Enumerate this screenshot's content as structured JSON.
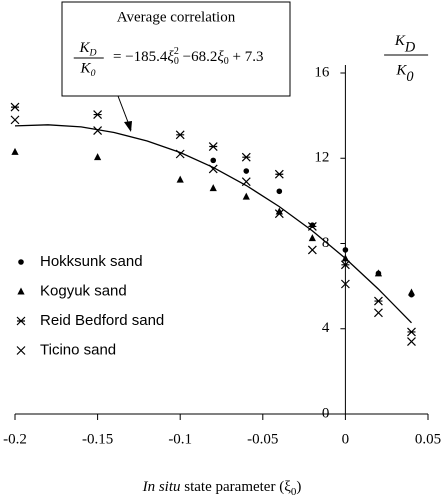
{
  "chart_data": {
    "type": "scatter",
    "xlim": [
      -0.2,
      0.05
    ],
    "ylim": [
      0,
      16
    ],
    "xticks": [
      -0.2,
      -0.15,
      -0.1,
      -0.05,
      0,
      0.05
    ],
    "yticks": [
      0,
      4,
      8,
      12,
      16
    ],
    "x_label": [
      "In situ",
      " state parameter (ξ",
      "0",
      ")"
    ],
    "y_label": {
      "numerator": "K",
      "numerator_sub": "D",
      "denominator": "K",
      "denominator_sub": "0"
    },
    "annotation": {
      "title": "Average correlation",
      "lhs": {
        "numerator": "K",
        "numerator_sub": "D",
        "denominator": "K",
        "denominator_sub": "0"
      },
      "rhs": [
        "= −185.4",
        "ξ",
        "0",
        "2",
        " −68.2",
        "ξ",
        "0",
        " + 7.3"
      ]
    },
    "series": [
      {
        "name": "Hokksunk sand",
        "marker": "dot",
        "color": "#000000",
        "x": [
          -0.08,
          -0.06,
          -0.04,
          -0.02,
          0,
          0.02,
          0.04
        ],
        "values": [
          11.9,
          11.4,
          10.45,
          8.86,
          7.7,
          6.6,
          5.6
        ]
      },
      {
        "name": "Kogyuk sand",
        "marker": "triangle",
        "color": "#000000",
        "x": [
          -0.2,
          -0.15,
          -0.1,
          -0.08,
          -0.06,
          -0.04,
          -0.02,
          0,
          0.02,
          0.04
        ],
        "values": [
          12.3,
          12.05,
          11.0,
          10.6,
          10.2,
          9.5,
          8.25,
          7.3,
          6.6,
          5.7
        ]
      },
      {
        "name": "Reid Bedford sand",
        "marker": "asterisk",
        "color": "#000000",
        "x": [
          -0.2,
          -0.15,
          -0.1,
          -0.08,
          -0.06,
          -0.04,
          -0.02,
          0,
          0.02,
          0.04
        ],
        "values": [
          14.4,
          14.05,
          13.1,
          12.55,
          12.05,
          11.25,
          8.8,
          7.0,
          5.3,
          3.85
        ]
      },
      {
        "name": "Ticino sand",
        "marker": "x",
        "color": "#000000",
        "x": [
          -0.2,
          -0.15,
          -0.1,
          -0.08,
          -0.06,
          -0.04,
          -0.02,
          0,
          0.02,
          0.04
        ],
        "values": [
          13.8,
          13.3,
          12.2,
          11.5,
          10.9,
          9.4,
          7.7,
          6.1,
          4.75,
          3.4
        ]
      }
    ],
    "fit": {
      "color": "#000000",
      "x": [
        -0.2,
        -0.18,
        -0.16,
        -0.14,
        -0.12,
        -0.1,
        -0.08,
        -0.06,
        -0.04,
        -0.02,
        0,
        0.02,
        0.04
      ],
      "values": [
        13.52,
        13.57,
        13.47,
        13.21,
        12.81,
        12.27,
        11.57,
        10.72,
        9.73,
        8.59,
        7.3,
        5.86,
        4.28
      ]
    }
  }
}
